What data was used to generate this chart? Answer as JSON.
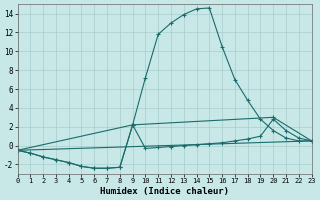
{
  "xlabel": "Humidex (Indice chaleur)",
  "background_color": "#c8e8e8",
  "grid_color": "#a8cccc",
  "line_color": "#1a6b6b",
  "xlim": [
    0,
    23
  ],
  "ylim": [
    -3,
    15
  ],
  "xticks": [
    0,
    1,
    2,
    3,
    4,
    5,
    6,
    7,
    8,
    9,
    10,
    11,
    12,
    13,
    14,
    15,
    16,
    17,
    18,
    19,
    20,
    21,
    22,
    23
  ],
  "yticks": [
    -2,
    0,
    2,
    4,
    6,
    8,
    10,
    12,
    14
  ],
  "series": [
    {
      "x": [
        0,
        1,
        2,
        3,
        4,
        5,
        6,
        7,
        8,
        9,
        10,
        11,
        12,
        13,
        14,
        15,
        16,
        17,
        18,
        19,
        20,
        21,
        22,
        23
      ],
      "y": [
        -0.5,
        -0.8,
        -1.2,
        -1.5,
        -1.8,
        -2.2,
        -2.4,
        -2.4,
        -2.3,
        2.2,
        7.2,
        11.8,
        13.0,
        13.9,
        14.5,
        14.6,
        10.5,
        7.0,
        4.8,
        2.8,
        1.6,
        0.8,
        0.5,
        0.5
      ],
      "marker": true
    },
    {
      "x": [
        0,
        1,
        2,
        3,
        4,
        5,
        6,
        7,
        8,
        9,
        10,
        11,
        12,
        13,
        14,
        15,
        16,
        17,
        18,
        19,
        20,
        21,
        22,
        23
      ],
      "y": [
        -0.5,
        -0.8,
        -1.2,
        -1.5,
        -1.8,
        -2.2,
        -2.4,
        -2.4,
        -2.3,
        2.2,
        -0.3,
        -0.2,
        -0.1,
        0.0,
        0.1,
        0.2,
        0.3,
        0.5,
        0.7,
        1.0,
        2.8,
        1.6,
        0.8,
        0.5
      ],
      "marker": true
    },
    {
      "comment": "line from 0,-.5 to 9,2.2 to 20,3 to 23,0.5",
      "x": [
        0,
        9,
        20,
        23
      ],
      "y": [
        -0.5,
        2.2,
        3.0,
        0.5
      ],
      "marker": true
    },
    {
      "x": [
        0,
        23
      ],
      "y": [
        -0.5,
        0.5
      ],
      "marker": false
    }
  ]
}
